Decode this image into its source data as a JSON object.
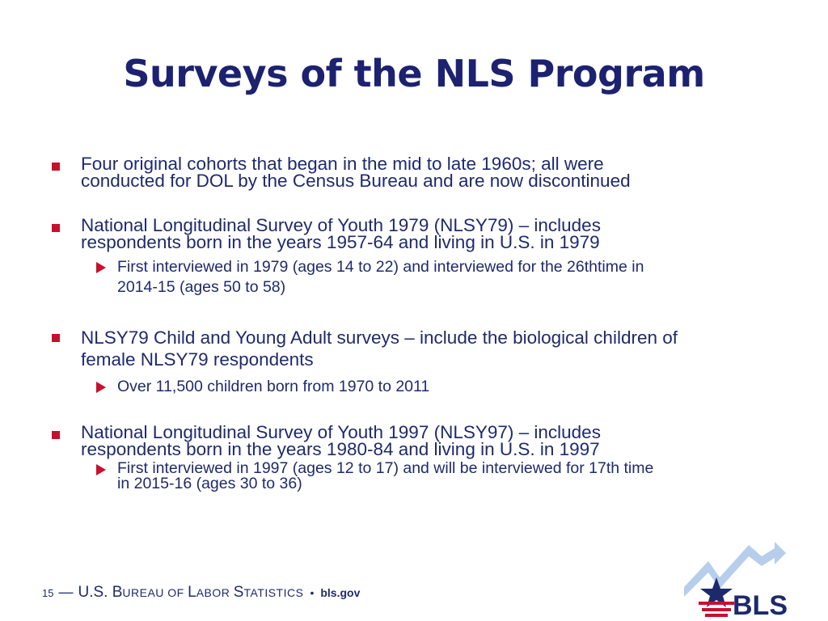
{
  "slide": {
    "title": "Surveys of the NLS Program"
  },
  "bullets": [
    {
      "lines": [
        "Four original cohorts that began in the mid to late 1960s; all were",
        "conducted for DOL by the Census Bureau and are now discontinued"
      ]
    },
    {
      "lines": [
        "National Longitudinal Survey of Youth 1979 (NLSY79) – includes",
        "respondents born in the years 1957-64 and living in U.S. in 1979"
      ],
      "sub": {
        "lines": [
          "First interviewed in 1979 (ages 14 to 22) and interviewed for the 26thtime in",
          "2014-15 (ages 50 to 58)"
        ]
      }
    },
    {
      "lines": [
        "NLSY79 Child and Young Adult surveys – include the biological children of",
        "female NLSY79 respondents"
      ],
      "sub": {
        "lines": [
          "Over 11,500 children born from 1970 to 2011"
        ]
      }
    },
    {
      "lines": [
        "National Longitudinal Survey of Youth 1997 (NLSY97) – includes",
        "respondents born in the years 1980-84 and living in U.S. in 1997"
      ],
      "sub": {
        "lines": [
          "First interviewed in 1997 (ages 12 to 17) and will be interviewed for 17th time",
          "in 2015-16 (ages 30 to 36)"
        ]
      }
    }
  ],
  "footer": {
    "page_number": "15",
    "dash": "—",
    "org_parts": [
      "U.S. ",
      "B",
      "UREAU OF ",
      "L",
      "ABOR ",
      "S",
      "TATISTICS"
    ],
    "separator": "•",
    "url": "bls.gov"
  },
  "logo": {
    "text": "BLS"
  },
  "colors": {
    "title": "#1c2270",
    "text": "#1f2a6b",
    "accent_red": "#c8102e",
    "logo_blue": "#1c2a6b",
    "logo_light": "#a9c6e8"
  }
}
